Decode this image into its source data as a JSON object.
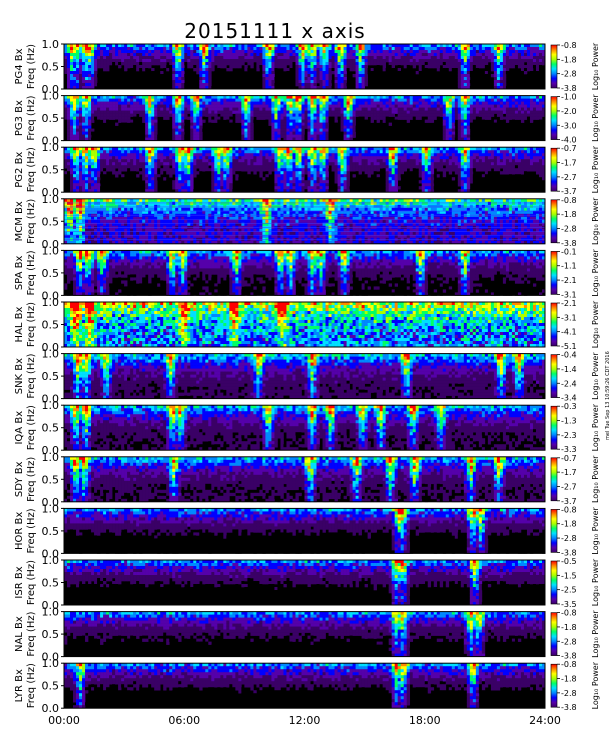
{
  "chart_data": {
    "type": "heatmap",
    "title": "20151111 x axis",
    "side_note": "mel Tue Sep 13 10:59:26 CDT 2016",
    "x_ticks": [
      "00:00",
      "06:00",
      "12:00",
      "18:00",
      "24:00"
    ],
    "xlim_hours": [
      0,
      24
    ],
    "y_ticks": [
      "1.0",
      "0.5",
      "0.0"
    ],
    "ylim_hz": [
      0,
      1.0
    ],
    "y_label_line2": "Freq (Hz)",
    "colorbar_label": "Log₁₀ Power",
    "colormap": [
      "#000000",
      "#3a0066",
      "#5500aa",
      "#0000ff",
      "#0088ff",
      "#00e0ff",
      "#00ff66",
      "#aaff00",
      "#ffff00",
      "#ff8800",
      "#ff0000"
    ],
    "panels": [
      {
        "station": "PG4 Bx",
        "cbar_ticks": [
          "-0.8",
          "-1.8",
          "-2.8",
          "-3.8"
        ],
        "cbar_range": [
          -3.8,
          -0.8
        ],
        "background_level": 0.05,
        "events_hours": [
          0.4,
          0.6,
          1.1,
          1.3,
          5.7,
          7.0,
          10.2,
          11.9,
          12.4,
          13.0,
          13.8,
          14.8,
          20.0,
          21.7
        ]
      },
      {
        "station": "PG3 Bx",
        "cbar_ticks": [
          "-1.0",
          "-2.0",
          "-3.0",
          "-4.0"
        ],
        "cbar_range": [
          -4.0,
          -1.0
        ],
        "background_level": 0.05,
        "events_hours": [
          0.5,
          1.1,
          4.3,
          5.7,
          6.6,
          9.1,
          10.6,
          11.3,
          11.7,
          12.4,
          12.9,
          14.2,
          19.2,
          20.0
        ]
      },
      {
        "station": "PG2 Bx",
        "cbar_ticks": [
          "-0.7",
          "-1.7",
          "-2.7",
          "-3.7"
        ],
        "cbar_range": [
          -3.7,
          -0.7
        ],
        "background_level": 0.06,
        "events_hours": [
          0.6,
          1.1,
          1.5,
          4.3,
          5.8,
          6.2,
          7.7,
          8.1,
          10.8,
          11.2,
          11.7,
          12.4,
          12.9,
          13.9,
          16.4,
          18.1,
          20.0
        ]
      },
      {
        "station": "MCM Bx",
        "cbar_ticks": [
          "-0.8",
          "-1.8",
          "-2.8",
          "-3.8"
        ],
        "cbar_range": [
          -3.8,
          -0.8
        ],
        "background_level": 0.25,
        "events_hours": [
          0.3,
          0.8,
          10.1,
          13.3
        ]
      },
      {
        "station": "SPA Bx",
        "cbar_ticks": [
          "-0.1",
          "-1.1",
          "-2.1",
          "-3.1"
        ],
        "cbar_range": [
          -3.1,
          -0.1
        ],
        "background_level": 0.07,
        "events_hours": [
          0.8,
          1.2,
          1.9,
          5.4,
          5.9,
          8.6,
          10.8,
          11.3,
          12.4,
          12.8,
          14.0,
          17.8,
          20.0
        ]
      },
      {
        "station": "HAL Bx",
        "cbar_ticks": [
          "-2.1",
          "-3.1",
          "-4.1",
          "-5.1"
        ],
        "cbar_range": [
          -5.1,
          -2.1
        ],
        "background_level": 0.42,
        "events_hours": [
          0.6,
          1.3,
          6.0,
          8.5,
          10.9
        ]
      },
      {
        "station": "SNK Bx",
        "cbar_ticks": [
          "-0.4",
          "-1.4",
          "-2.4",
          "-3.4"
        ],
        "cbar_range": [
          -3.4,
          -0.4
        ],
        "background_level": 0.12,
        "events_hours": [
          0.7,
          1.1,
          2.1,
          5.3,
          9.7,
          12.4,
          17.1,
          21.8,
          22.7
        ]
      },
      {
        "station": "IQA Bx",
        "cbar_ticks": [
          "-0.3",
          "-1.3",
          "-2.3",
          "-3.3"
        ],
        "cbar_range": [
          -3.3,
          -0.3
        ],
        "background_level": 0.1,
        "events_hours": [
          0.6,
          1.1,
          5.4,
          5.8,
          10.2,
          12.4,
          13.3,
          14.9,
          15.8,
          17.4,
          18.8
        ]
      },
      {
        "station": "SDY Bx",
        "cbar_ticks": [
          "-0.7",
          "-1.7",
          "-2.7",
          "-3.7"
        ],
        "cbar_range": [
          -3.7,
          -0.7
        ],
        "background_level": 0.1,
        "events_hours": [
          0.6,
          1.0,
          5.5,
          12.3,
          14.6,
          16.3,
          17.5,
          20.3,
          21.7
        ]
      },
      {
        "station": "HOR Bx",
        "cbar_ticks": [
          "-0.8",
          "-1.8",
          "-2.8",
          "-3.8"
        ],
        "cbar_range": [
          -3.8,
          -0.8
        ],
        "background_level": 0.05,
        "events_hours": [
          16.7,
          16.9,
          20.4,
          20.8
        ]
      },
      {
        "station": "ISR Bx",
        "cbar_ticks": [
          "-0.5",
          "-1.5",
          "-2.5",
          "-3.5"
        ],
        "cbar_range": [
          -3.5,
          -0.5
        ],
        "background_level": 0.05,
        "events_hours": [
          16.6,
          16.9,
          20.5
        ]
      },
      {
        "station": "NAL Bx",
        "cbar_ticks": [
          "-0.8",
          "-1.8",
          "-2.8",
          "-3.8"
        ],
        "cbar_range": [
          -3.8,
          -0.8
        ],
        "background_level": 0.06,
        "events_hours": [
          16.6,
          16.9,
          20.3,
          20.7
        ]
      },
      {
        "station": "LYR Bx",
        "cbar_ticks": [
          "-0.8",
          "-1.8",
          "-2.8",
          "-3.8"
        ],
        "cbar_range": [
          -3.8,
          -0.8
        ],
        "background_level": 0.05,
        "events_hours": [
          0.8,
          16.6,
          16.9,
          20.4
        ]
      }
    ]
  }
}
